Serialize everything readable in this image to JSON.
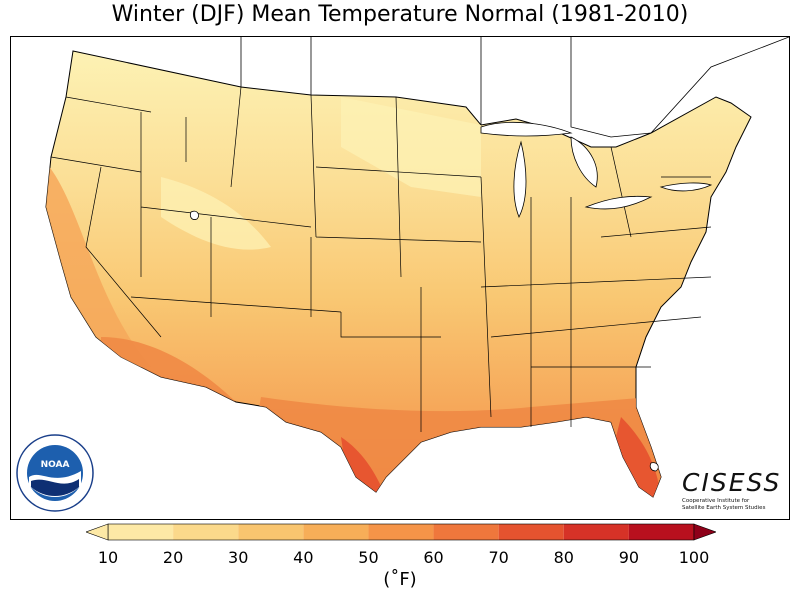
{
  "title": "Winter (DJF) Mean Temperature Normal (1981-2010)",
  "units": "(˚F)",
  "colorbar": {
    "ticks": [
      "10",
      "20",
      "30",
      "40",
      "50",
      "60",
      "70",
      "80",
      "90",
      "100"
    ],
    "colors": [
      "#fde9a6",
      "#fbd98b",
      "#f9c56f",
      "#f7ae58",
      "#f59448",
      "#ef773c",
      "#e5532f",
      "#d63227",
      "#b8101e",
      "#8e0019"
    ],
    "extend": "both"
  },
  "logos": {
    "noaa": {
      "center_text": "NOAA",
      "ring_text_top": "NATIONAL OCEANIC AND ATMOSPHERIC ADMINISTRATION",
      "ring_text_bottom": "U.S. DEPARTMENT OF COMMERCE"
    },
    "cisess": {
      "wordmark": "CISESS",
      "subtitle_line1": "Cooperative Institute for",
      "subtitle_line2": "Satellite Earth System Studies"
    }
  },
  "map": {
    "region": "Contiguous United States",
    "palette": {
      "land_cold": "#fdf2b4",
      "land_cool": "#fbde95",
      "land_mid": "#f9c873",
      "land_warm": "#f6a85a",
      "land_hot": "#f08a45",
      "land_very_hot": "#e6532f",
      "water": "#ffffff",
      "outline": "#000000"
    }
  }
}
